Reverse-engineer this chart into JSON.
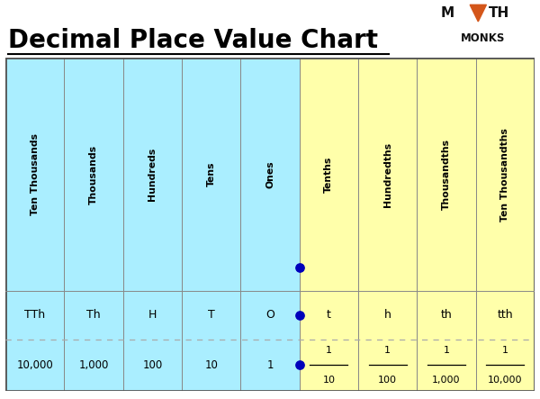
{
  "title": "Decimal Place Value Chart",
  "title_fontsize": 20,
  "bg_color": "#ffffff",
  "cyan_color": "#aaeeff",
  "yellow_color": "#ffffaa",
  "border_color": "#888888",
  "dot_color": "#0000bb",
  "columns": [
    "Ten Thousands",
    "Thousands",
    "Hundreds",
    "Tens",
    "Ones",
    "Tenths",
    "Hundredths",
    "Thousandths",
    "Ten Thousandths"
  ],
  "abbreviations": [
    "TTh",
    "Th",
    "H",
    "T",
    "O",
    "t",
    "h",
    "th",
    "tth"
  ],
  "values_plain": [
    "10,000",
    "1,000",
    "100",
    "10",
    "1",
    "",
    "",
    "",
    ""
  ],
  "values_frac_num": [
    "",
    "",
    "",
    "",
    "",
    "1",
    "1",
    "1",
    "1"
  ],
  "values_frac_den": [
    "",
    "",
    "",
    "",
    "",
    "10",
    "100",
    "1,000",
    "10,000"
  ],
  "n_cyan": 5,
  "logo_triangle_color": "#d4561a",
  "logo_text_color": "#111111",
  "col_widths": [
    1.15,
    1.05,
    0.95,
    0.85,
    0.85,
    0.9,
    1.0,
    1.05,
    1.2
  ]
}
